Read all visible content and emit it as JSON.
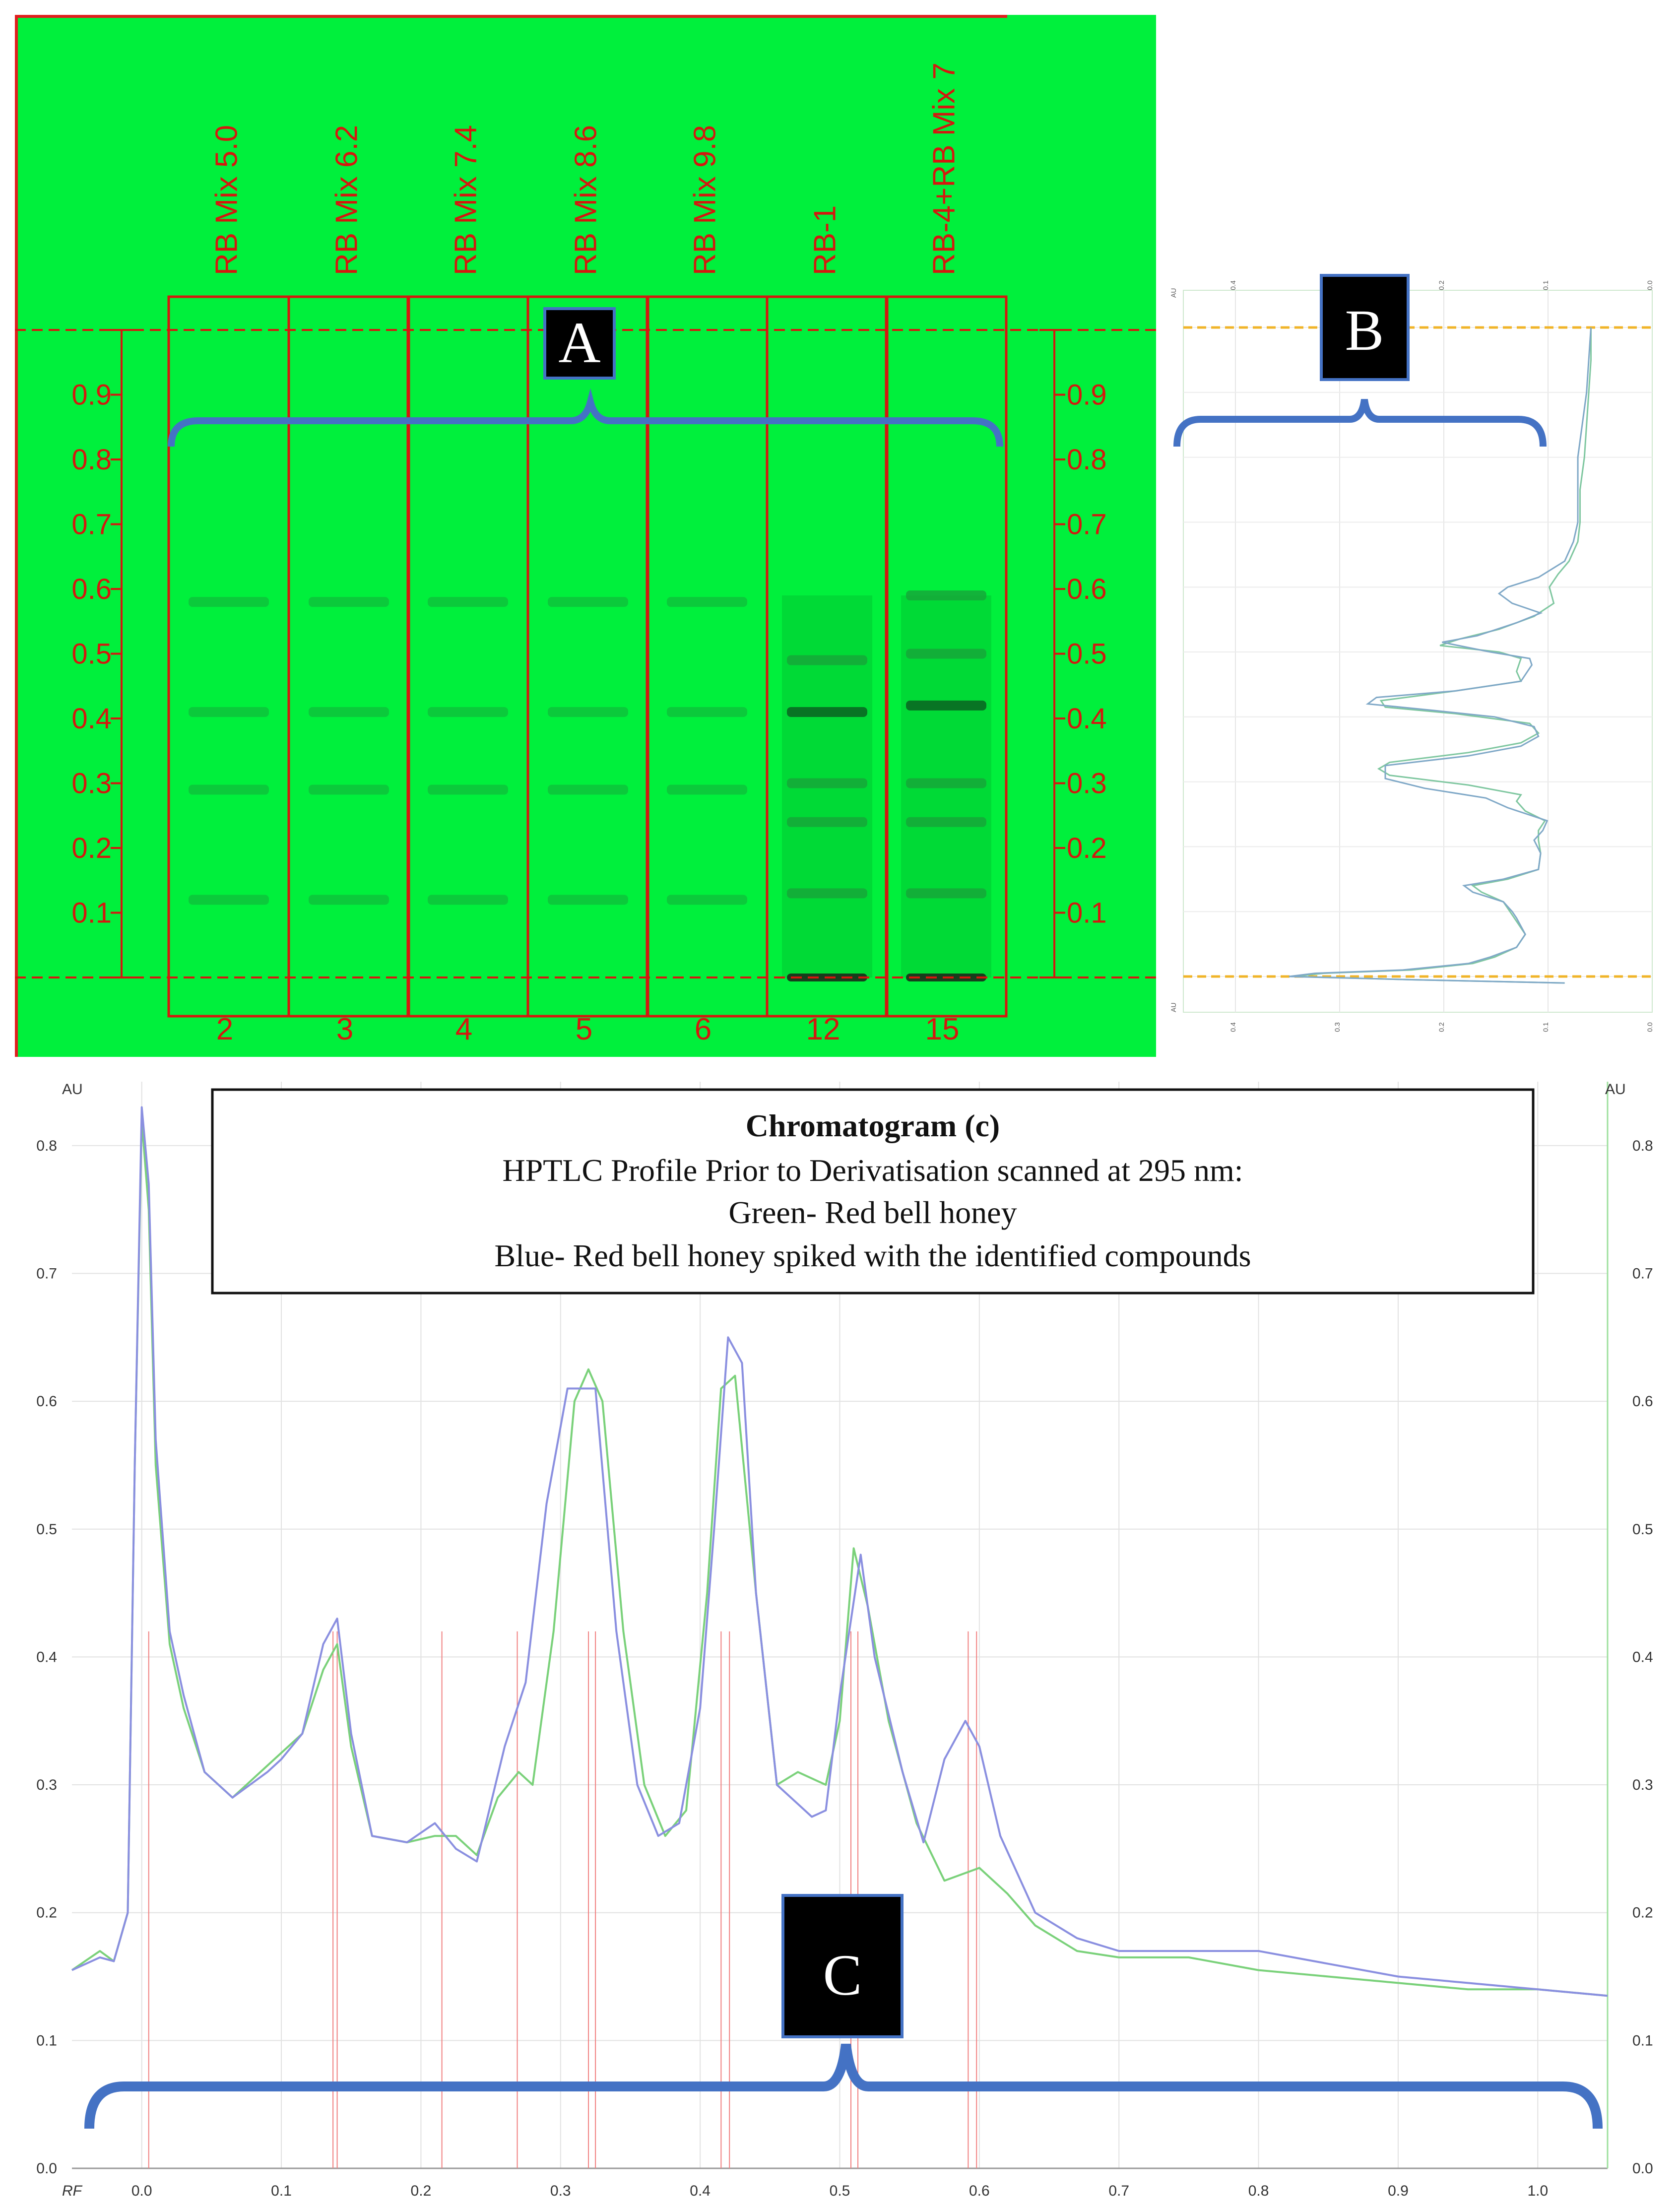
{
  "panel_a": {
    "badge": "A",
    "lanes": [
      {
        "label": "RB Mix 5.0",
        "number": "2"
      },
      {
        "label": "RB Mix 6.2",
        "number": "3"
      },
      {
        "label": "RB Mix 7.4",
        "number": "4"
      },
      {
        "label": "RB Mix 8.6",
        "number": "5"
      },
      {
        "label": "RB Mix 9.8",
        "number": "6"
      },
      {
        "label": "RB-1",
        "number": "12"
      },
      {
        "label": "RB-4+RB Mix 7",
        "number": "15"
      }
    ],
    "rf_scale": [
      "0.9",
      "0.8",
      "0.7",
      "0.6",
      "0.5",
      "0.4",
      "0.3",
      "0.2",
      "0.1"
    ],
    "bands": {
      "mix_lanes_rf": [
        0.58,
        0.41,
        0.29,
        0.12
      ],
      "rb1_rf": [
        0.49,
        0.41,
        0.3,
        0.24,
        0.13,
        0.0
      ],
      "rb4_rf": [
        0.59,
        0.5,
        0.42,
        0.3,
        0.24,
        0.13,
        0.0
      ]
    },
    "colors": {
      "plate": "#00f03c",
      "annotation": "#d4180f",
      "bracket": "#4472c4"
    }
  },
  "panel_b": {
    "badge": "B",
    "axis_ticks": [
      "0.4",
      "0.3",
      "0.2",
      "0.1",
      "0.0"
    ],
    "au_label": "AU"
  },
  "panel_c": {
    "badge": "C",
    "title_box": {
      "line1": "Chromatogram (c)",
      "line2": "HPTLC  Profile Prior to Derivatisation scanned at 295 nm:",
      "line3": "Green- Red bell honey",
      "line4": "Blue- Red bell honey spiked with the identified compounds"
    }
  },
  "chart_data": {
    "type": "line",
    "xlabel": "RF",
    "ylabel": "AU",
    "y2label": "AU",
    "xlim": [
      -0.05,
      1.05
    ],
    "ylim": [
      0.0,
      0.85
    ],
    "xticks": [
      "0.0",
      "0.1",
      "0.2",
      "0.3",
      "0.4",
      "0.5",
      "0.6",
      "0.7",
      "0.8",
      "0.9",
      "1.0"
    ],
    "yticks": [
      "0.0",
      "0.1",
      "0.2",
      "0.3",
      "0.4",
      "0.5",
      "0.6",
      "0.7",
      "0.8"
    ],
    "grid": true,
    "series": [
      {
        "color": "#7ad17a",
        "x": [
          -0.05,
          -0.03,
          -0.02,
          -0.01,
          -0.005,
          0.0,
          0.005,
          0.01,
          0.02,
          0.03,
          0.045,
          0.065,
          0.09,
          0.1,
          0.115,
          0.13,
          0.14,
          0.15,
          0.165,
          0.19,
          0.21,
          0.225,
          0.24,
          0.255,
          0.27,
          0.28,
          0.295,
          0.31,
          0.32,
          0.33,
          0.345,
          0.36,
          0.375,
          0.39,
          0.405,
          0.415,
          0.425,
          0.44,
          0.455,
          0.47,
          0.48,
          0.49,
          0.5,
          0.51,
          0.52,
          0.535,
          0.555,
          0.575,
          0.6,
          0.62,
          0.64,
          0.67,
          0.7,
          0.75,
          0.8,
          0.85,
          0.9,
          0.95,
          1.0,
          1.05
        ],
        "y": [
          0.155,
          0.17,
          0.162,
          0.2,
          0.55,
          0.82,
          0.75,
          0.55,
          0.41,
          0.36,
          0.31,
          0.29,
          0.315,
          0.325,
          0.34,
          0.39,
          0.41,
          0.33,
          0.26,
          0.255,
          0.26,
          0.26,
          0.245,
          0.29,
          0.31,
          0.3,
          0.42,
          0.6,
          0.625,
          0.6,
          0.42,
          0.3,
          0.26,
          0.28,
          0.45,
          0.61,
          0.62,
          0.45,
          0.3,
          0.31,
          0.305,
          0.3,
          0.35,
          0.485,
          0.44,
          0.35,
          0.27,
          0.225,
          0.235,
          0.215,
          0.19,
          0.17,
          0.165,
          0.165,
          0.155,
          0.15,
          0.145,
          0.14,
          0.14,
          0.135
        ]
      },
      {
        "color": "#8a8fe0",
        "x": [
          -0.05,
          -0.03,
          -0.02,
          -0.01,
          -0.005,
          0.0,
          0.005,
          0.01,
          0.02,
          0.03,
          0.045,
          0.065,
          0.09,
          0.1,
          0.115,
          0.13,
          0.14,
          0.15,
          0.165,
          0.19,
          0.21,
          0.225,
          0.24,
          0.26,
          0.275,
          0.29,
          0.305,
          0.325,
          0.34,
          0.355,
          0.37,
          0.385,
          0.4,
          0.41,
          0.42,
          0.43,
          0.44,
          0.455,
          0.47,
          0.48,
          0.49,
          0.5,
          0.515,
          0.525,
          0.545,
          0.56,
          0.575,
          0.59,
          0.6,
          0.615,
          0.64,
          0.67,
          0.7,
          0.75,
          0.8,
          0.85,
          0.9,
          0.95,
          1.0,
          1.05
        ],
        "y": [
          0.155,
          0.165,
          0.162,
          0.2,
          0.55,
          0.83,
          0.77,
          0.57,
          0.42,
          0.37,
          0.31,
          0.29,
          0.31,
          0.32,
          0.34,
          0.41,
          0.43,
          0.34,
          0.26,
          0.255,
          0.27,
          0.25,
          0.24,
          0.33,
          0.38,
          0.52,
          0.61,
          0.61,
          0.42,
          0.3,
          0.26,
          0.27,
          0.36,
          0.5,
          0.65,
          0.63,
          0.45,
          0.3,
          0.285,
          0.275,
          0.28,
          0.37,
          0.48,
          0.4,
          0.31,
          0.255,
          0.32,
          0.35,
          0.33,
          0.26,
          0.2,
          0.18,
          0.17,
          0.17,
          0.17,
          0.16,
          0.15,
          0.145,
          0.14,
          0.135
        ]
      }
    ],
    "peak_markers_rf": [
      0.005,
      0.137,
      0.14,
      0.215,
      0.269,
      0.32,
      0.325,
      0.415,
      0.421,
      0.508,
      0.513,
      0.592,
      0.598
    ]
  }
}
